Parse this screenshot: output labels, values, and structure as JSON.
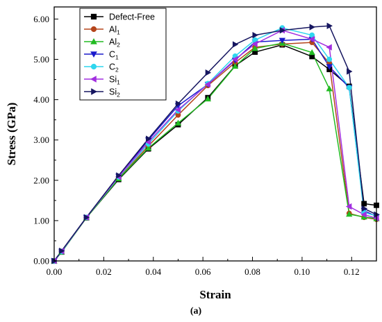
{
  "caption": "(a)",
  "chart_data": {
    "type": "line",
    "title": "",
    "xlabel": "Strain",
    "ylabel": "Stress (GPa)",
    "xlim": [
      0,
      0.13
    ],
    "ylim": [
      0,
      6.3
    ],
    "xticks": [
      0.0,
      0.02,
      0.04,
      0.06,
      0.08,
      0.1,
      0.12
    ],
    "xtick_labels": [
      "0.00",
      "0.02",
      "0.04",
      "0.06",
      "0.08",
      "0.10",
      "0.12"
    ],
    "yticks": [
      0,
      1,
      2,
      3,
      4,
      5,
      6
    ],
    "ytick_labels": [
      "0.00",
      "1.00",
      "2.00",
      "3.00",
      "4.00",
      "5.00",
      "6.00"
    ],
    "grid": false,
    "legend_position": "top-left",
    "series": [
      {
        "name": "Defect-Free",
        "label_main": "Defect-Free",
        "label_sub": "",
        "color": "#000000",
        "marker": "square",
        "points": [
          [
            0.0,
            0.0
          ],
          [
            0.003,
            0.22
          ],
          [
            0.013,
            1.07
          ],
          [
            0.026,
            2.02
          ],
          [
            0.038,
            2.78
          ],
          [
            0.05,
            3.38
          ],
          [
            0.062,
            4.05
          ],
          [
            0.073,
            4.84
          ],
          [
            0.081,
            5.18
          ],
          [
            0.092,
            5.36
          ],
          [
            0.104,
            5.07
          ],
          [
            0.111,
            4.75
          ],
          [
            0.119,
            4.33
          ],
          [
            0.125,
            1.42
          ],
          [
            0.13,
            1.38
          ]
        ]
      },
      {
        "name": "Al1",
        "label_main": "Al",
        "label_sub": "1",
        "color": "#b5451b",
        "marker": "circle",
        "points": [
          [
            0.0,
            0.0
          ],
          [
            0.003,
            0.23
          ],
          [
            0.013,
            1.07
          ],
          [
            0.026,
            2.05
          ],
          [
            0.038,
            2.85
          ],
          [
            0.05,
            3.62
          ],
          [
            0.062,
            4.35
          ],
          [
            0.073,
            4.92
          ],
          [
            0.081,
            5.3
          ],
          [
            0.092,
            5.38
          ],
          [
            0.104,
            5.42
          ],
          [
            0.111,
            4.9
          ],
          [
            0.119,
            1.18
          ],
          [
            0.125,
            1.08
          ],
          [
            0.13,
            1.03
          ]
        ]
      },
      {
        "name": "Al2",
        "label_main": "Al",
        "label_sub": "2",
        "color": "#22bb22",
        "marker": "triangle-up",
        "points": [
          [
            0.0,
            0.0
          ],
          [
            0.003,
            0.22
          ],
          [
            0.013,
            1.07
          ],
          [
            0.026,
            2.04
          ],
          [
            0.038,
            2.8
          ],
          [
            0.05,
            3.42
          ],
          [
            0.062,
            4.02
          ],
          [
            0.073,
            4.83
          ],
          [
            0.081,
            5.27
          ],
          [
            0.092,
            5.4
          ],
          [
            0.104,
            5.17
          ],
          [
            0.111,
            4.27
          ],
          [
            0.119,
            1.16
          ],
          [
            0.125,
            1.09
          ],
          [
            0.13,
            1.05
          ]
        ]
      },
      {
        "name": "C1",
        "label_main": "C",
        "label_sub": "1",
        "color": "#1a1acc",
        "marker": "triangle-down",
        "points": [
          [
            0.0,
            0.0
          ],
          [
            0.003,
            0.24
          ],
          [
            0.013,
            1.08
          ],
          [
            0.026,
            2.1
          ],
          [
            0.038,
            3.0
          ],
          [
            0.05,
            3.85
          ],
          [
            0.062,
            4.38
          ],
          [
            0.073,
            4.98
          ],
          [
            0.081,
            5.43
          ],
          [
            0.092,
            5.47
          ],
          [
            0.104,
            5.5
          ],
          [
            0.111,
            4.82
          ],
          [
            0.119,
            4.3
          ],
          [
            0.125,
            1.25
          ],
          [
            0.13,
            1.1
          ]
        ]
      },
      {
        "name": "C2",
        "label_main": "C",
        "label_sub": "2",
        "color": "#2fd6ee",
        "marker": "circle",
        "points": [
          [
            0.0,
            0.0
          ],
          [
            0.003,
            0.23
          ],
          [
            0.013,
            1.08
          ],
          [
            0.026,
            2.08
          ],
          [
            0.038,
            2.9
          ],
          [
            0.05,
            3.72
          ],
          [
            0.062,
            4.4
          ],
          [
            0.073,
            5.08
          ],
          [
            0.081,
            5.48
          ],
          [
            0.092,
            5.78
          ],
          [
            0.104,
            5.6
          ],
          [
            0.111,
            5.0
          ],
          [
            0.119,
            4.3
          ],
          [
            0.125,
            1.2
          ],
          [
            0.13,
            1.12
          ]
        ]
      },
      {
        "name": "Si1",
        "label_main": "Si",
        "label_sub": "1",
        "color": "#a22ee0",
        "marker": "triangle-left",
        "points": [
          [
            0.0,
            0.0
          ],
          [
            0.003,
            0.24
          ],
          [
            0.013,
            1.08
          ],
          [
            0.026,
            2.09
          ],
          [
            0.038,
            2.95
          ],
          [
            0.05,
            3.75
          ],
          [
            0.062,
            4.38
          ],
          [
            0.073,
            5.0
          ],
          [
            0.081,
            5.38
          ],
          [
            0.092,
            5.72
          ],
          [
            0.104,
            5.5
          ],
          [
            0.111,
            5.3
          ],
          [
            0.119,
            1.35
          ],
          [
            0.125,
            1.15
          ],
          [
            0.13,
            1.06
          ]
        ]
      },
      {
        "name": "Si2",
        "label_main": "Si",
        "label_sub": "2",
        "color": "#161660",
        "marker": "triangle-right",
        "points": [
          [
            0.0,
            0.0
          ],
          [
            0.003,
            0.25
          ],
          [
            0.013,
            1.08
          ],
          [
            0.026,
            2.12
          ],
          [
            0.038,
            3.03
          ],
          [
            0.05,
            3.9
          ],
          [
            0.062,
            4.67
          ],
          [
            0.073,
            5.37
          ],
          [
            0.081,
            5.6
          ],
          [
            0.092,
            5.72
          ],
          [
            0.104,
            5.8
          ],
          [
            0.111,
            5.83
          ],
          [
            0.119,
            4.7
          ],
          [
            0.125,
            1.3
          ],
          [
            0.13,
            1.15
          ]
        ]
      }
    ]
  }
}
